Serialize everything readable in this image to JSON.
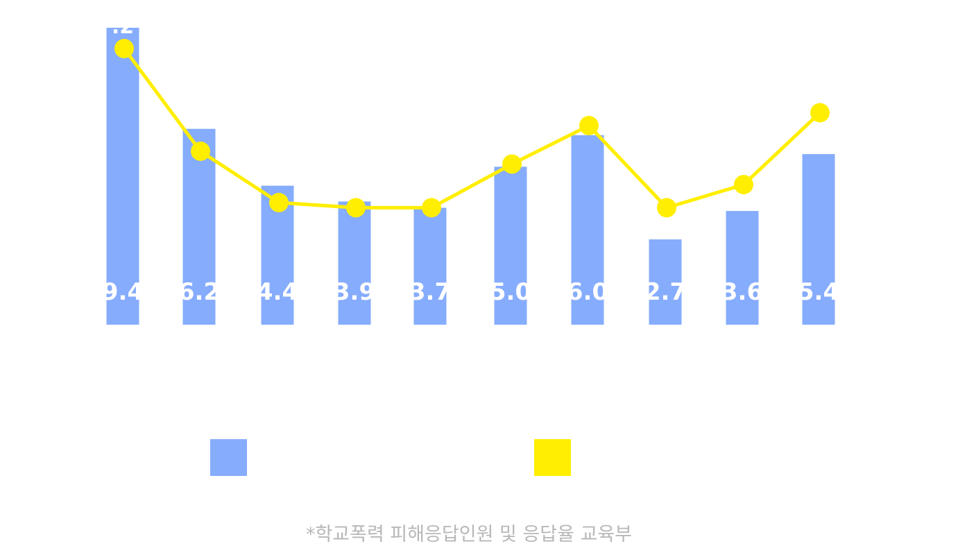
{
  "chart_data": {
    "type": "bar",
    "categories": [
      "",
      "",
      "",
      "",
      "",
      "",
      "",
      "",
      "",
      ""
    ],
    "series": [
      {
        "type": "bar",
        "color": "#86acfd",
        "values": [
          9.4,
          6.2,
          4.4,
          3.9,
          3.7,
          5.0,
          6.0,
          2.7,
          3.6,
          5.4
        ],
        "labels": [
          "9.4",
          "6.2",
          "4.4",
          "3.9",
          "3.7",
          "5.0",
          "6.0",
          "2.7",
          "3.6",
          "5.4"
        ]
      },
      {
        "type": "line",
        "color": "#ffee00",
        "values": [
          4.2,
          3.4,
          3.0,
          2.96,
          2.96,
          3.3,
          3.6,
          2.96,
          3.14,
          3.7
        ],
        "labels": [
          ".2",
          "",
          "",
          "",
          "",
          "",
          "",
          "",
          "",
          ""
        ]
      }
    ],
    "y_bar_range": [
      0,
      9.4
    ],
    "grid": false,
    "legend_position": "bottom"
  },
  "legend": [
    {
      "color": "#86acfd"
    },
    {
      "color": "#ffee00"
    }
  ],
  "source_note": "*학교폭력 피해응답인원 및 응답율 교육부"
}
